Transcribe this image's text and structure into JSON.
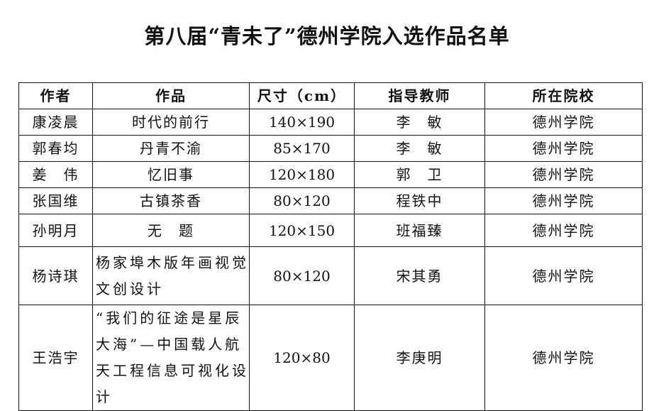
{
  "title": "第八届“青未了”德州学院入选作品名单",
  "table": {
    "headers": [
      "作者",
      "作品",
      "尺寸（cm）",
      "指导教师",
      "所在院校"
    ],
    "rows": [
      {
        "author": "康凌晨",
        "work": "时代的前行",
        "size": "140×190",
        "teacher": "李　敏",
        "school": "德州学院"
      },
      {
        "author": "郭春均",
        "work": "丹青不渝",
        "size": "85×170",
        "teacher": "李　敏",
        "school": "德州学院"
      },
      {
        "author": "姜　伟",
        "work": "忆旧事",
        "size": "120×180",
        "teacher": "郭　卫",
        "school": "德州学院"
      },
      {
        "author": "张国维",
        "work": "古镇茶香",
        "size": "80×120",
        "teacher": "程铁中",
        "school": "德州学院"
      },
      {
        "author": "孙明月",
        "work": "无　题",
        "size": "120×150",
        "teacher": "班福臻",
        "school": "德州学院"
      },
      {
        "author": "杨诗琪",
        "work": "杨家埠木版年画视觉文创设计",
        "size": "80×120",
        "teacher": "宋其勇",
        "school": "德州学院"
      },
      {
        "author": "王浩宇",
        "work": "“我们的征途是星辰大海”—中国载人航天工程信息可视化设计",
        "size": "120×80",
        "teacher": "李庚明",
        "school": "德州学院"
      }
    ]
  }
}
